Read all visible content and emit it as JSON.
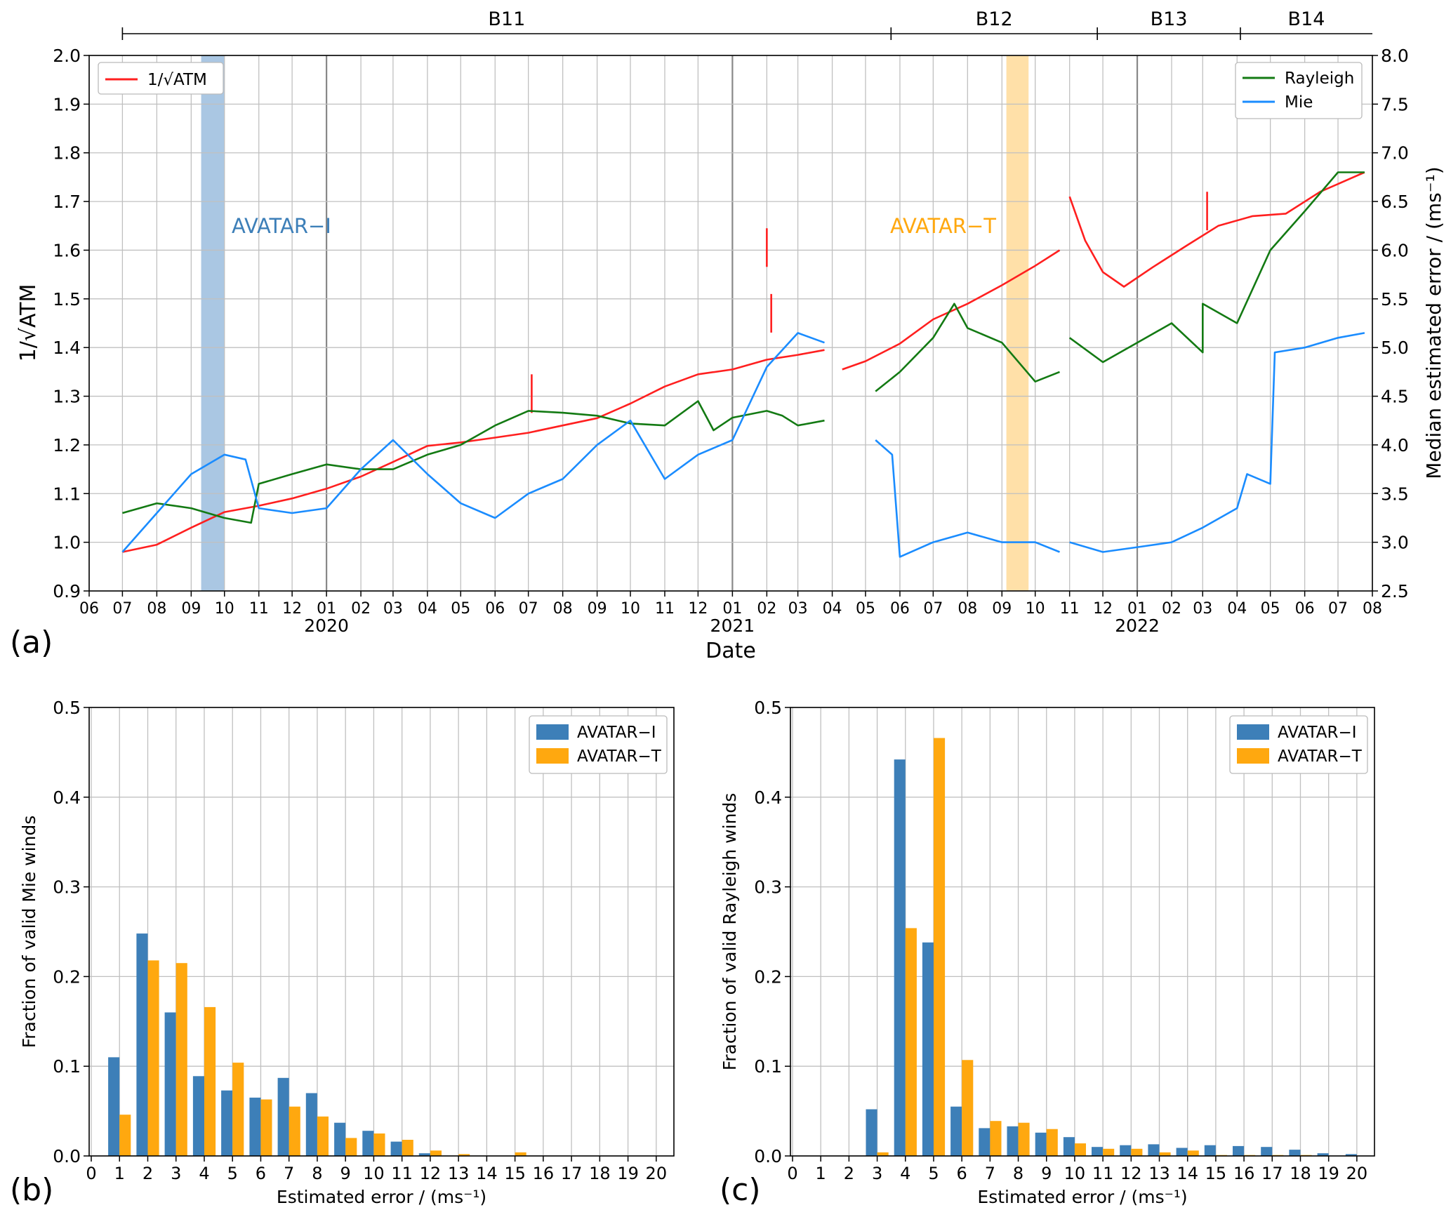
{
  "chart_data": [
    {
      "panel_label": "(a)",
      "type": "line",
      "xlabel": "Date",
      "ylabel_left": "1/√ATM",
      "ylabel_right": "Median estimated error / (ms⁻¹)",
      "ylim_left": [
        0.9,
        2.0
      ],
      "ylim_right": [
        2.5,
        8.0
      ],
      "y_ticks_left": [
        "0.9",
        "1.0",
        "1.1",
        "1.2",
        "1.3",
        "1.4",
        "1.5",
        "1.6",
        "1.7",
        "1.8",
        "1.9",
        "2.0"
      ],
      "y_ticks_right": [
        "2.5",
        "3.0",
        "3.5",
        "4.0",
        "4.5",
        "5.0",
        "5.5",
        "6.0",
        "6.5",
        "7.0",
        "7.5",
        "8.0"
      ],
      "xlim": [
        "2019-06-01",
        "2022-08-01"
      ],
      "x_month_ticks": [
        "06",
        "07",
        "08",
        "09",
        "10",
        "11",
        "12",
        "01",
        "02",
        "03",
        "04",
        "05",
        "06",
        "07",
        "08",
        "09",
        "10",
        "11",
        "12",
        "01",
        "02",
        "03",
        "04",
        "05",
        "06",
        "07",
        "08",
        "09",
        "10",
        "11",
        "12",
        "01",
        "02",
        "03",
        "04",
        "05",
        "06",
        "07",
        "08"
      ],
      "x_year_labels": [
        {
          "label": "2020",
          "date": "2020-01-01"
        },
        {
          "label": "2021",
          "date": "2021-01-01"
        },
        {
          "label": "2022",
          "date": "2022-01-01"
        }
      ],
      "grid": true,
      "baselines": [
        {
          "label": "B11",
          "start": "2019-07-01",
          "end": "2021-05-24"
        },
        {
          "label": "B12",
          "start": "2021-05-24",
          "end": "2021-11-26"
        },
        {
          "label": "B13",
          "start": "2021-11-26",
          "end": "2022-04-04"
        },
        {
          "label": "B14",
          "start": "2022-04-04",
          "end": "2022-08-01"
        }
      ],
      "campaigns": [
        {
          "label": "AVATAR−I",
          "start": "2019-09-10",
          "end": "2019-10-01",
          "color": "#aac7e3"
        },
        {
          "label": "AVATAR−T",
          "start": "2021-09-05",
          "end": "2021-09-25",
          "color": "#ffe0a8"
        }
      ],
      "legend_left": {
        "position": "upper-left",
        "entries": [
          "1/√ATM"
        ]
      },
      "legend_right": {
        "position": "upper-right",
        "entries": [
          "Rayleigh",
          "Mie"
        ]
      },
      "series": [
        {
          "name": "1/√ATM",
          "axis": "left",
          "color": "#ff1f1f",
          "segments": [
            [
              [
                "2019-07-01",
                0.98
              ],
              [
                "2019-08-01",
                0.995
              ],
              [
                "2019-09-01",
                1.03
              ],
              [
                "2019-10-01",
                1.062
              ],
              [
                "2019-11-01",
                1.075
              ],
              [
                "2019-12-01",
                1.09
              ],
              [
                "2020-01-01",
                1.11
              ],
              [
                "2020-02-01",
                1.135
              ],
              [
                "2020-03-01",
                1.165
              ],
              [
                "2020-04-01",
                1.198
              ],
              [
                "2020-05-01",
                1.205
              ],
              [
                "2020-06-01",
                1.215
              ],
              [
                "2020-07-01",
                1.225
              ],
              [
                "2020-08-01",
                1.24
              ],
              [
                "2020-09-01",
                1.255
              ],
              [
                "2020-10-01",
                1.285
              ],
              [
                "2020-11-01",
                1.32
              ],
              [
                "2020-12-01",
                1.345
              ],
              [
                "2021-01-01",
                1.355
              ],
              [
                "2021-02-01",
                1.375
              ],
              [
                "2021-03-01",
                1.385
              ],
              [
                "2021-03-25",
                1.395
              ]
            ],
            [
              [
                "2021-04-10",
                1.355
              ],
              [
                "2021-05-01",
                1.372
              ],
              [
                "2021-06-01",
                1.408
              ],
              [
                "2021-07-01",
                1.458
              ],
              [
                "2021-08-01",
                1.49
              ],
              [
                "2021-09-01",
                1.528
              ],
              [
                "2021-10-01",
                1.568
              ],
              [
                "2021-10-23",
                1.6
              ]
            ],
            [
              [
                "2021-11-01",
                1.71
              ],
              [
                "2021-11-15",
                1.62
              ],
              [
                "2021-12-01",
                1.555
              ],
              [
                "2021-12-20",
                1.525
              ],
              [
                "2022-01-15",
                1.565
              ],
              [
                "2022-02-15",
                1.61
              ],
              [
                "2022-03-15",
                1.65
              ],
              [
                "2022-04-15",
                1.67
              ],
              [
                "2022-05-15",
                1.675
              ],
              [
                "2022-06-15",
                1.72
              ],
              [
                "2022-07-25",
                1.76
              ]
            ]
          ],
          "spikes": [
            [
              "2020-07-04",
              1.345
            ],
            [
              "2021-02-01",
              1.645
            ],
            [
              "2021-02-05",
              1.51
            ],
            [
              "2022-03-05",
              1.72
            ]
          ]
        },
        {
          "name": "Rayleigh",
          "axis": "right",
          "color": "#137a13",
          "segments": [
            [
              [
                "2019-07-01",
                3.3
              ],
              [
                "2019-08-01",
                3.4
              ],
              [
                "2019-09-01",
                3.35
              ],
              [
                "2019-10-01",
                3.25
              ],
              [
                "2019-10-25",
                3.2
              ],
              [
                "2019-11-01",
                3.6
              ],
              [
                "2019-12-01",
                3.7
              ],
              [
                "2020-01-01",
                3.8
              ],
              [
                "2020-02-01",
                3.75
              ],
              [
                "2020-03-01",
                3.75
              ],
              [
                "2020-04-01",
                3.9
              ],
              [
                "2020-05-01",
                4.0
              ],
              [
                "2020-06-01",
                4.2
              ],
              [
                "2020-07-01",
                4.35
              ],
              [
                "2020-08-01",
                4.33
              ],
              [
                "2020-09-01",
                4.3
              ],
              [
                "2020-10-01",
                4.22
              ],
              [
                "2020-11-01",
                4.2
              ],
              [
                "2020-12-01",
                4.45
              ],
              [
                "2020-12-15",
                4.15
              ],
              [
                "2021-01-01",
                4.28
              ],
              [
                "2021-02-01",
                4.35
              ],
              [
                "2021-02-15",
                4.3
              ],
              [
                "2021-03-01",
                4.2
              ],
              [
                "2021-03-25",
                4.25
              ]
            ],
            [
              [
                "2021-05-10",
                4.55
              ],
              [
                "2021-06-01",
                4.75
              ],
              [
                "2021-07-01",
                5.1
              ],
              [
                "2021-07-20",
                5.45
              ],
              [
                "2021-08-01",
                5.2
              ],
              [
                "2021-09-01",
                5.05
              ],
              [
                "2021-10-01",
                4.65
              ],
              [
                "2021-10-23",
                4.75
              ]
            ],
            [
              [
                "2021-11-01",
                5.1
              ],
              [
                "2021-12-01",
                4.85
              ],
              [
                "2022-01-01",
                5.05
              ],
              [
                "2022-02-01",
                5.25
              ],
              [
                "2022-03-01",
                4.95
              ],
              [
                "2022-03-01",
                5.45
              ],
              [
                "2022-04-01",
                5.25
              ],
              [
                "2022-05-01",
                6.0
              ],
              [
                "2022-06-01",
                6.4
              ],
              [
                "2022-07-01",
                6.8
              ],
              [
                "2022-07-25",
                6.8
              ]
            ]
          ]
        },
        {
          "name": "Mie",
          "axis": "right",
          "color": "#1a8cff",
          "segments": [
            [
              [
                "2019-07-01",
                2.9
              ],
              [
                "2019-08-01",
                3.3
              ],
              [
                "2019-09-01",
                3.7
              ],
              [
                "2019-10-01",
                3.9
              ],
              [
                "2019-10-20",
                3.85
              ],
              [
                "2019-11-01",
                3.35
              ],
              [
                "2019-12-01",
                3.3
              ],
              [
                "2020-01-01",
                3.35
              ],
              [
                "2020-02-01",
                3.75
              ],
              [
                "2020-03-01",
                4.05
              ],
              [
                "2020-04-01",
                3.7
              ],
              [
                "2020-05-01",
                3.4
              ],
              [
                "2020-06-01",
                3.25
              ],
              [
                "2020-07-01",
                3.5
              ],
              [
                "2020-08-01",
                3.65
              ],
              [
                "2020-09-01",
                4.0
              ],
              [
                "2020-10-01",
                4.25
              ],
              [
                "2020-11-01",
                3.65
              ],
              [
                "2020-12-01",
                3.9
              ],
              [
                "2021-01-01",
                4.05
              ],
              [
                "2021-02-01",
                4.8
              ],
              [
                "2021-03-01",
                5.15
              ],
              [
                "2021-03-25",
                5.05
              ]
            ],
            [
              [
                "2021-05-10",
                4.05
              ],
              [
                "2021-05-25",
                3.9
              ],
              [
                "2021-06-01",
                2.85
              ],
              [
                "2021-07-01",
                3.0
              ],
              [
                "2021-08-01",
                3.1
              ],
              [
                "2021-09-01",
                3.0
              ],
              [
                "2021-10-01",
                3.0
              ],
              [
                "2021-10-23",
                2.9
              ]
            ],
            [
              [
                "2021-11-01",
                3.0
              ],
              [
                "2021-12-01",
                2.9
              ],
              [
                "2022-01-01",
                2.95
              ],
              [
                "2022-02-01",
                3.0
              ],
              [
                "2022-03-01",
                3.15
              ],
              [
                "2022-04-01",
                3.35
              ],
              [
                "2022-04-10",
                3.7
              ],
              [
                "2022-05-01",
                3.6
              ],
              [
                "2022-05-05",
                4.95
              ],
              [
                "2022-06-01",
                5.0
              ],
              [
                "2022-07-01",
                5.1
              ],
              [
                "2022-07-25",
                5.15
              ]
            ]
          ]
        }
      ],
      "campaign_labels": [
        "AVATAR−I",
        "AVATAR−T"
      ]
    },
    {
      "panel_label": "(b)",
      "type": "bar",
      "xlabel": "Estimated error / (ms⁻¹)",
      "ylabel": "Fraction of valid Mie winds",
      "ylim": [
        0,
        0.5
      ],
      "y_ticks": [
        "0.0",
        "0.1",
        "0.2",
        "0.3",
        "0.4",
        "0.5"
      ],
      "categories": [
        "0",
        "1",
        "2",
        "3",
        "4",
        "5",
        "6",
        "7",
        "8",
        "9",
        "10",
        "11",
        "12",
        "13",
        "14",
        "15",
        "16",
        "17",
        "18",
        "19",
        "20"
      ],
      "grid": true,
      "legend": {
        "position": "upper-right"
      },
      "series": [
        {
          "name": "AVATAR−I",
          "color": "#3d7fb8",
          "values": [
            0,
            0.11,
            0.248,
            0.16,
            0.089,
            0.073,
            0.065,
            0.087,
            0.07,
            0.037,
            0.028,
            0.016,
            0.003,
            0,
            0,
            0,
            0,
            0,
            0,
            0,
            0
          ]
        },
        {
          "name": "AVATAR−T",
          "color": "#ffa80f",
          "values": [
            0,
            0.046,
            0.218,
            0.215,
            0.166,
            0.104,
            0.063,
            0.055,
            0.044,
            0.02,
            0.025,
            0.018,
            0.006,
            0.002,
            0,
            0.004,
            0,
            0,
            0,
            0,
            0
          ]
        }
      ]
    },
    {
      "panel_label": "(c)",
      "type": "bar",
      "xlabel": "Estimated error / (ms⁻¹)",
      "ylabel": "Fraction of valid Rayleigh winds",
      "ylim": [
        0,
        0.5
      ],
      "y_ticks": [
        "0.0",
        "0.1",
        "0.2",
        "0.3",
        "0.4",
        "0.5"
      ],
      "categories": [
        "0",
        "1",
        "2",
        "3",
        "4",
        "5",
        "6",
        "7",
        "8",
        "9",
        "10",
        "11",
        "12",
        "13",
        "14",
        "15",
        "16",
        "17",
        "18",
        "19",
        "20"
      ],
      "grid": true,
      "legend": {
        "position": "upper-right"
      },
      "series": [
        {
          "name": "AVATAR−I",
          "color": "#3d7fb8",
          "values": [
            0,
            0,
            0,
            0.052,
            0.442,
            0.238,
            0.055,
            0.031,
            0.033,
            0.026,
            0.021,
            0.01,
            0.012,
            0.013,
            0.009,
            0.012,
            0.011,
            0.01,
            0.007,
            0.003,
            0.002
          ]
        },
        {
          "name": "AVATAR−T",
          "color": "#ffa80f",
          "values": [
            0,
            0,
            0,
            0.004,
            0.254,
            0.466,
            0.107,
            0.039,
            0.037,
            0.03,
            0.014,
            0.008,
            0.008,
            0.004,
            0.006,
            0.001,
            0.001,
            0.001,
            0.001,
            0,
            0
          ]
        }
      ]
    }
  ]
}
